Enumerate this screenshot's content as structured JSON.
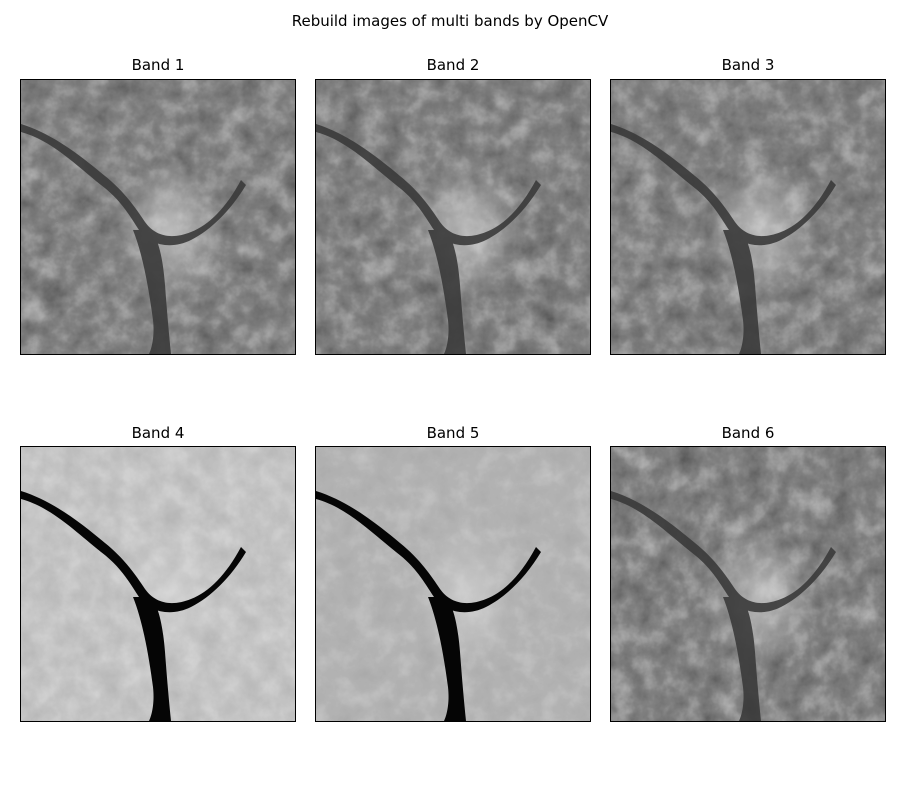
{
  "figure": {
    "title": "Rebuild images of multi bands by OpenCV",
    "panels": [
      {
        "title": "Band 1",
        "tone": "dark"
      },
      {
        "title": "Band 2",
        "tone": "dark"
      },
      {
        "title": "Band 3",
        "tone": "dark"
      },
      {
        "title": "Band 4",
        "tone": "light"
      },
      {
        "title": "Band 5",
        "tone": "mid"
      },
      {
        "title": "Band 6",
        "tone": "dark"
      }
    ]
  }
}
